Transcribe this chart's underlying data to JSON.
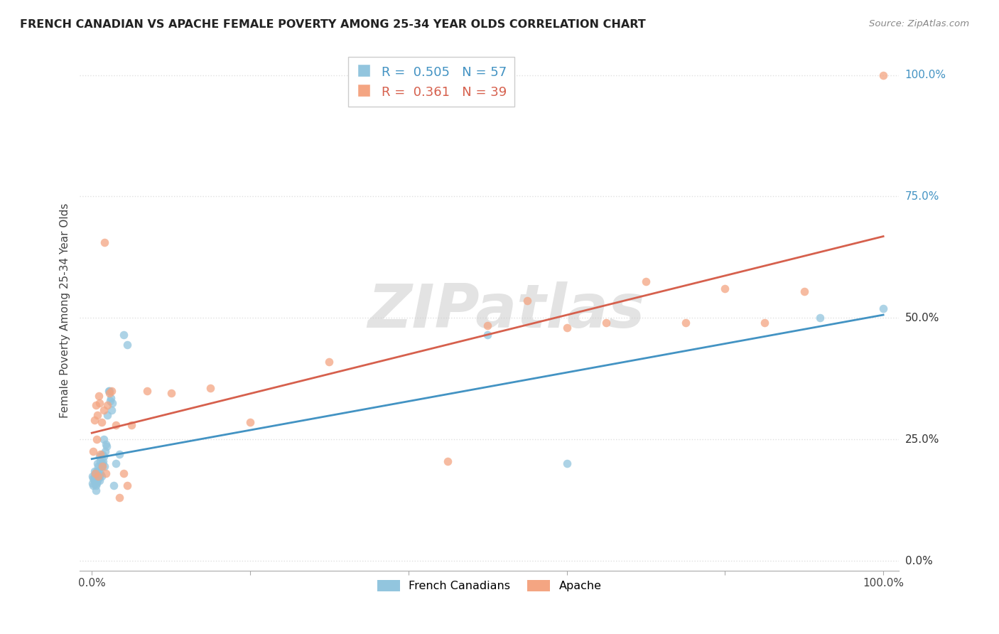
{
  "title": "FRENCH CANADIAN VS APACHE FEMALE POVERTY AMONG 25-34 YEAR OLDS CORRELATION CHART",
  "source": "Source: ZipAtlas.com",
  "ylabel": "Female Poverty Among 25-34 Year Olds",
  "blue_color": "#92c5de",
  "pink_color": "#f4a582",
  "blue_line_color": "#4393c3",
  "pink_line_color": "#d6604d",
  "blue_R": 0.505,
  "blue_N": 57,
  "pink_R": 0.361,
  "pink_N": 39,
  "legend_label_blue": "French Canadians",
  "legend_label_pink": "Apache",
  "watermark": "ZIPatlas",
  "french_canadian_x": [
    0.001,
    0.001,
    0.002,
    0.002,
    0.003,
    0.003,
    0.003,
    0.004,
    0.004,
    0.004,
    0.005,
    0.005,
    0.005,
    0.005,
    0.006,
    0.006,
    0.006,
    0.007,
    0.007,
    0.007,
    0.008,
    0.008,
    0.008,
    0.009,
    0.009,
    0.01,
    0.01,
    0.01,
    0.011,
    0.011,
    0.012,
    0.012,
    0.013,
    0.013,
    0.014,
    0.015,
    0.015,
    0.016,
    0.017,
    0.018,
    0.019,
    0.02,
    0.021,
    0.022,
    0.023,
    0.024,
    0.025,
    0.026,
    0.028,
    0.03,
    0.035,
    0.04,
    0.045,
    0.5,
    0.6,
    0.92,
    1.0
  ],
  "french_canadian_y": [
    0.175,
    0.16,
    0.17,
    0.155,
    0.165,
    0.175,
    0.185,
    0.16,
    0.17,
    0.18,
    0.145,
    0.155,
    0.165,
    0.175,
    0.16,
    0.17,
    0.185,
    0.165,
    0.175,
    0.2,
    0.17,
    0.18,
    0.195,
    0.175,
    0.185,
    0.165,
    0.175,
    0.215,
    0.18,
    0.205,
    0.175,
    0.195,
    0.22,
    0.2,
    0.205,
    0.215,
    0.25,
    0.195,
    0.225,
    0.24,
    0.235,
    0.3,
    0.35,
    0.35,
    0.33,
    0.335,
    0.31,
    0.325,
    0.155,
    0.2,
    0.22,
    0.465,
    0.445,
    0.465,
    0.2,
    0.5,
    0.52
  ],
  "apache_x": [
    0.002,
    0.003,
    0.004,
    0.005,
    0.006,
    0.007,
    0.008,
    0.009,
    0.01,
    0.011,
    0.012,
    0.013,
    0.015,
    0.016,
    0.018,
    0.02,
    0.022,
    0.025,
    0.03,
    0.035,
    0.04,
    0.045,
    0.05,
    0.07,
    0.1,
    0.15,
    0.2,
    0.3,
    0.45,
    0.5,
    0.55,
    0.6,
    0.65,
    0.7,
    0.75,
    0.8,
    0.85,
    0.9,
    1.0
  ],
  "apache_y": [
    0.225,
    0.29,
    0.18,
    0.32,
    0.25,
    0.3,
    0.175,
    0.34,
    0.325,
    0.22,
    0.285,
    0.195,
    0.31,
    0.655,
    0.18,
    0.32,
    0.345,
    0.35,
    0.28,
    0.13,
    0.18,
    0.155,
    0.28,
    0.35,
    0.345,
    0.355,
    0.285,
    0.41,
    0.205,
    0.485,
    0.535,
    0.48,
    0.49,
    0.575,
    0.49,
    0.56,
    0.49,
    0.555,
    1.0
  ],
  "xlim": [
    0.0,
    1.0
  ],
  "ylim": [
    0.0,
    1.05
  ],
  "background_color": "#ffffff",
  "grid_color": "#e0e0e0",
  "right_label_colors": [
    "#333333",
    "#333333",
    "#333333",
    "#4393c3",
    "#4393c3"
  ]
}
